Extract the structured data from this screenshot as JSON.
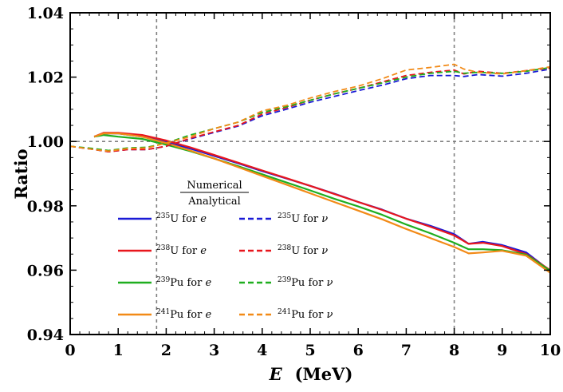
{
  "chart_data": {
    "type": "line",
    "title": "",
    "xlabel": "E",
    "xlabel_unit": "(MeV)",
    "ylabel": "Ratio",
    "xlim": [
      0,
      10
    ],
    "ylim": [
      0.94,
      1.04
    ],
    "x_ticks": [
      "0",
      "1",
      "2",
      "3",
      "4",
      "5",
      "6",
      "7",
      "8",
      "9",
      "10"
    ],
    "y_ticks": [
      "0.94",
      "0.96",
      "0.98",
      "1.00",
      "1.02",
      "1.04"
    ],
    "reference_lines": {
      "vertical": [
        1.8,
        8.0
      ],
      "horizontal": [
        1.0
      ]
    },
    "legend_heading": {
      "numerator": "Numerical",
      "denominator": "Analytical"
    },
    "series": [
      {
        "name": "235U for e",
        "iso": "235",
        "elem": "U",
        "suffix": " for ",
        "particle": "e",
        "color": "#1a1ad6",
        "dash": "solid",
        "x": [
          0.5,
          0.7,
          1.0,
          1.5,
          2.0,
          2.5,
          3.0,
          3.5,
          4.0,
          4.5,
          5.0,
          5.5,
          6.0,
          6.5,
          7.0,
          7.5,
          8.0,
          8.3,
          8.6,
          9.0,
          9.5,
          10.0
        ],
        "values": [
          1.0015,
          1.0025,
          1.0025,
          1.0015,
          0.9998,
          0.9978,
          0.9955,
          0.9932,
          0.9908,
          0.9885,
          0.9862,
          0.9838,
          0.9812,
          0.9788,
          0.976,
          0.9738,
          0.9712,
          0.9682,
          0.9688,
          0.9678,
          0.9655,
          0.9598
        ]
      },
      {
        "name": "238U for e",
        "iso": "238",
        "elem": "U",
        "suffix": " for ",
        "particle": "e",
        "color": "#e8161d",
        "dash": "solid",
        "x": [
          0.5,
          0.7,
          1.0,
          1.5,
          2.0,
          2.5,
          3.0,
          3.5,
          4.0,
          4.5,
          5.0,
          5.5,
          6.0,
          6.5,
          7.0,
          7.5,
          8.0,
          8.3,
          8.6,
          9.0,
          9.5,
          10.0
        ],
        "values": [
          1.0015,
          1.0027,
          1.0027,
          1.002,
          1.0003,
          0.9982,
          0.9958,
          0.9934,
          0.991,
          0.9886,
          0.9862,
          0.9837,
          0.9812,
          0.9787,
          0.976,
          0.9735,
          0.9708,
          0.9682,
          0.9685,
          0.9675,
          0.965,
          0.96
        ]
      },
      {
        "name": "239Pu for e",
        "iso": "239",
        "elem": "Pu",
        "suffix": " for ",
        "particle": "e",
        "color": "#1fae1f",
        "dash": "solid",
        "x": [
          0.5,
          0.7,
          1.0,
          1.5,
          2.0,
          2.5,
          3.0,
          3.5,
          4.0,
          4.5,
          5.0,
          5.5,
          6.0,
          6.5,
          7.0,
          7.5,
          8.0,
          8.3,
          8.6,
          9.0,
          9.5,
          10.0
        ],
        "values": [
          1.0015,
          1.002,
          1.0015,
          1.0008,
          0.999,
          0.997,
          0.9947,
          0.9923,
          0.9898,
          0.9873,
          0.9848,
          0.9822,
          0.9798,
          0.9772,
          0.9742,
          0.9715,
          0.9685,
          0.9665,
          0.9665,
          0.9662,
          0.9648,
          0.9598
        ]
      },
      {
        "name": "241Pu for e",
        "iso": "241",
        "elem": "Pu",
        "suffix": " for ",
        "particle": "e",
        "color": "#f28a17",
        "dash": "solid",
        "x": [
          0.5,
          0.7,
          1.0,
          1.5,
          2.0,
          2.5,
          3.0,
          3.5,
          4.0,
          4.5,
          5.0,
          5.5,
          6.0,
          6.5,
          7.0,
          7.5,
          8.0,
          8.3,
          8.6,
          9.0,
          9.5,
          10.0
        ],
        "values": [
          1.0015,
          1.0025,
          1.0025,
          1.0015,
          0.9995,
          0.9972,
          0.9947,
          0.992,
          0.9893,
          0.9866,
          0.9839,
          0.9812,
          0.9785,
          0.9758,
          0.9728,
          0.97,
          0.9672,
          0.9652,
          0.9655,
          0.966,
          0.9645,
          0.9592
        ]
      },
      {
        "name": "235U for ν",
        "iso": "235",
        "elem": "U",
        "suffix": " for ",
        "particle": "ν",
        "color": "#1a1ad6",
        "dash": "dashed",
        "x": [
          0.0,
          0.5,
          0.8,
          1.2,
          1.6,
          2.0,
          2.5,
          3.0,
          3.5,
          4.0,
          4.5,
          5.0,
          5.5,
          6.0,
          6.5,
          7.0,
          7.5,
          8.0,
          8.2,
          8.5,
          9.0,
          9.5,
          10.0
        ],
        "values": [
          0.9985,
          0.9975,
          0.9968,
          0.9975,
          0.9975,
          0.9985,
          1.0008,
          1.0028,
          1.0048,
          1.008,
          1.01,
          1.0122,
          1.014,
          1.0158,
          1.0175,
          1.0195,
          1.0205,
          1.0205,
          1.0202,
          1.0208,
          1.0203,
          1.0212,
          1.0225
        ]
      },
      {
        "name": "238U for ν",
        "iso": "238",
        "elem": "U",
        "suffix": " for ",
        "particle": "ν",
        "color": "#e8161d",
        "dash": "dashed",
        "x": [
          0.0,
          0.5,
          0.8,
          1.2,
          1.6,
          2.0,
          2.5,
          3.0,
          3.5,
          4.0,
          4.5,
          5.0,
          5.5,
          6.0,
          6.5,
          7.0,
          7.5,
          8.0,
          8.2,
          8.5,
          9.0,
          9.5,
          10.0
        ],
        "values": [
          0.9985,
          0.9975,
          0.9968,
          0.9975,
          0.9975,
          0.9985,
          1.001,
          1.003,
          1.005,
          1.0085,
          1.0105,
          1.0128,
          1.0148,
          1.0165,
          1.0185,
          1.0205,
          1.0215,
          1.0222,
          1.021,
          1.0218,
          1.0212,
          1.022,
          1.0228
        ]
      },
      {
        "name": "239Pu for ν",
        "iso": "239",
        "elem": "Pu",
        "suffix": " for ",
        "particle": "ν",
        "color": "#1fae1f",
        "dash": "dashed",
        "x": [
          0.0,
          0.5,
          0.8,
          1.2,
          1.6,
          2.0,
          2.5,
          3.0,
          3.5,
          4.0,
          4.5,
          5.0,
          5.5,
          6.0,
          6.5,
          7.0,
          7.5,
          8.0,
          8.2,
          8.5,
          9.0,
          9.5,
          10.0
        ],
        "values": [
          0.9985,
          0.9978,
          0.9972,
          0.998,
          0.9982,
          0.9995,
          1.002,
          1.004,
          1.006,
          1.009,
          1.0108,
          1.0128,
          1.0148,
          1.0165,
          1.0182,
          1.02,
          1.0212,
          1.0218,
          1.0212,
          1.0215,
          1.0212,
          1.0218,
          1.023
        ]
      },
      {
        "name": "241Pu for ν",
        "iso": "241",
        "elem": "Pu",
        "suffix": " for ",
        "particle": "ν",
        "color": "#f28a17",
        "dash": "dashed",
        "x": [
          0.0,
          0.5,
          0.8,
          1.2,
          1.6,
          2.0,
          2.5,
          3.0,
          3.5,
          4.0,
          4.5,
          5.0,
          5.5,
          6.0,
          6.5,
          7.0,
          7.5,
          8.0,
          8.2,
          8.5,
          9.0,
          9.5,
          10.0
        ],
        "values": [
          0.9985,
          0.9975,
          0.997,
          0.9978,
          0.998,
          0.9995,
          1.0015,
          1.004,
          1.006,
          1.0095,
          1.0112,
          1.0135,
          1.0155,
          1.0172,
          1.0195,
          1.0222,
          1.023,
          1.024,
          1.0225,
          1.0215,
          1.021,
          1.022,
          1.0232
        ]
      }
    ]
  }
}
